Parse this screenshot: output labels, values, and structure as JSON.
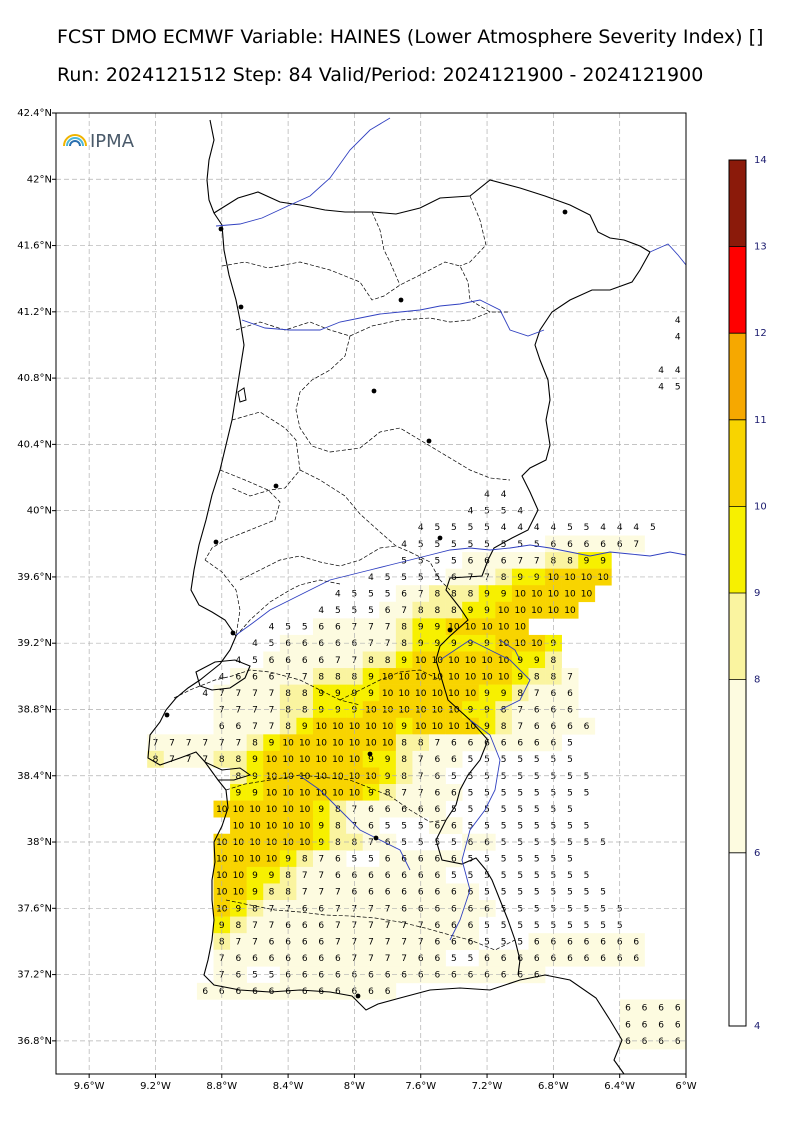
{
  "title_line1": "FCST DMO ECMWF Variable: HAINES (Lower Atmosphere Severity Index) []",
  "title_line2": "Run: 2024121512 Step: 84 Valid/Period: 2024121900 - 2024121900",
  "logo": {
    "text": "IPMA",
    "icon": "ipma-rainbow-logo"
  },
  "lat_ticks": [
    "42.4°N",
    "42°N",
    "41.6°N",
    "41.2°N",
    "40.8°N",
    "40.4°N",
    "40°N",
    "39.6°N",
    "39.2°N",
    "38.8°N",
    "38.4°N",
    "38°N",
    "37.6°N",
    "37.2°N",
    "36.8°N"
  ],
  "lon_ticks": [
    "9.6°W",
    "9.2°W",
    "8.8°W",
    "8.4°W",
    "8°W",
    "7.6°W",
    "7.2°W",
    "6.8°W",
    "6.4°W",
    "6°W"
  ],
  "colorbar": {
    "ticks": [
      "4",
      "6",
      "8",
      "9",
      "10",
      "11",
      "12",
      "13",
      "14"
    ],
    "bands": [
      {
        "from": 4,
        "to": 6,
        "color": "#ffffff"
      },
      {
        "from": 6,
        "to": 8,
        "color": "#fdfbe0"
      },
      {
        "from": 8,
        "to": 9,
        "color": "#faf4a0"
      },
      {
        "from": 9,
        "to": 10,
        "color": "#f7f000"
      },
      {
        "from": 10,
        "to": 11,
        "color": "#f8d400"
      },
      {
        "from": 11,
        "to": 12,
        "color": "#f6a800"
      },
      {
        "from": 12,
        "to": 13,
        "color": "#ff0000"
      },
      {
        "from": 13,
        "to": 14,
        "color": "#8b1a0a"
      }
    ]
  },
  "colors": {
    "grid": "#b0b0b0",
    "coast": "#000000",
    "river": "#3040c0"
  },
  "chart_data": {
    "type": "heatmap",
    "variable": "HAINES",
    "lon_range": [
      -9.8,
      -6.0
    ],
    "lat_range": [
      36.6,
      42.4
    ],
    "grid_origin": {
      "lon": -6.9,
      "lat": 40.1
    },
    "grid_step": 0.1,
    "rows": [
      "4 4 ",
      "4 5 5 4",
      "4 5 5 5 5 4 4 4 4 5 5 4 4 4 5",
      "4 5 5 5 5 5 5 5 5 6 6 6 6 6 7",
      "5 5 5 5 6 6 6 7 7 8 8 9 9",
      "4 5 5 5 5 6 7 7 8 9 9 10 10 10 10",
      "4 5 5 5 6 7 8 8 8 9 9 10 10 10 10 10",
      "4 5 5 5 6 7 8 8 8 9 9 10 10 10 10 10",
      "4 5 5 6 6 7 7 7 8 9 9 10 10 10 10 10",
      "4 5 6 6 6 6 6 7 7 8 9 9 9 9 9 10 10 10 9",
      "4 5 6 6 6 6 7 7 8 8 9 10 10 10 10 10 10 9 9 8",
      "4 6 6 6 7 7 8 8 8 9 10 10 10 10 10 10 10 10 9 8 8 7",
      "4 7 7 7 7 8 8 9 9 9 9 10 10 10 10 10 10 9 9 8 7 6 6",
      "7 7 7 7 8 8 9 9 9 10 10 10 10 10 10 9 9 8 7 6 6 6",
      "6 6 7 7 8 9 10 10 10 10 10 9 10 10 10 10 9 8 7 6 6 6 6",
      "7 7 7 7 7 7 8 9 10 10 10 10 10 10 10 8 8 7 6 6 6 6 6 6 6 5",
      "8 7 7 7 8 8 9 10 10 10 10 10 10 9 9 8 7 6 6 5 5 5 5 5 5 5",
      "8 9 10 10 10 10 10 10 10 9 8 7 6 5 5 5 5 5 5 5 5 5",
      "9 9 10 10 10 10 10 10 9 8 7 7 6 6 5 5 5 5 5 5 5 5",
      "10 10 10 10 10 10 9 8 7 6 6 6 6 6 5 5 5 5 5 5 5 5",
      "10 10 10 10 10 9 8 7 6 5 5 5 6 6 5 5 5 5 5 5 5 5",
      "10 10 10 10 10 10 9 8 8 7 6 5 5 5 5 6 6 5 5 5 5 5 5 5",
      "10 10 10 10 9 8 7 6 5 5 6 6 6 6 6 5 5 5 5 5 5 5",
      "10 10 9 9 8 7 7 6 6 6 6 6 6 6 5 5 5 5 5 5 5 5 5",
      "10 10 9 8 8 7 7 7 6 6 6 6 6 6 6 6 5 5 5 5 5 5 5 5",
      "10 9 8 7 7 6 6 7 7 7 7 6 6 6 6 6 6 5 5 5 5 5 5 5 5",
      "9 8 7 7 6 6 6 7 7 7 7 7 7 6 6 6 5 5 5 5 5 5 5 5 5",
      "8 7 7 6 6 6 6 7 7 7 7 7 7 6 6 6 5 5 5 6 6 6 6 6 6 6",
      "7 6 6 6 6 6 6 6 7 7 7 7 6 6 5 5 6 6 6 6 6 6 6 6 6 6",
      "7 6 5 5 6 6 6 6 6 6 6 6 6 6 6 6 6 6 6 6",
      "6 6 6 6 6 6 6 6 6 6 6 6",
      "6 6 6 6",
      "6 6 6 6",
      "6 6 6 6"
    ]
  }
}
